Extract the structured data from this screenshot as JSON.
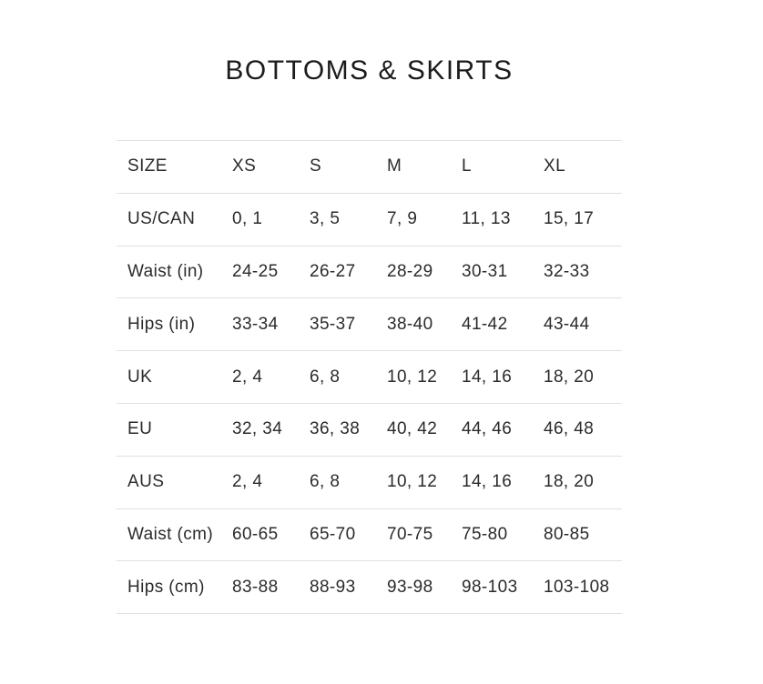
{
  "title": "BOTTOMS & SKIRTS",
  "colors": {
    "background": "#ffffff",
    "title_text": "#1c1c1c",
    "cell_text": "#2b2b2b",
    "divider": "#e0e0e0"
  },
  "table": {
    "columns": [
      "SIZE",
      "XS",
      "S",
      "M",
      "L",
      "XL"
    ],
    "rows": [
      {
        "label": "US/CAN",
        "values": [
          "0, 1",
          "3, 5",
          "7, 9",
          "11, 13",
          "15, 17"
        ]
      },
      {
        "label": "Waist (in)",
        "values": [
          "24-25",
          "26-27",
          "28-29",
          "30-31",
          "32-33"
        ]
      },
      {
        "label": "Hips (in)",
        "values": [
          "33-34",
          "35-37",
          "38-40",
          "41-42",
          "43-44"
        ]
      },
      {
        "label": "UK",
        "values": [
          "2, 4",
          "6, 8",
          "10, 12",
          "14, 16",
          "18, 20"
        ]
      },
      {
        "label": "EU",
        "values": [
          "32, 34",
          "36, 38",
          "40, 42",
          "44, 46",
          "46, 48"
        ]
      },
      {
        "label": "AUS",
        "values": [
          "2, 4",
          "6, 8",
          "10, 12",
          "14, 16",
          "18, 20"
        ]
      },
      {
        "label": "Waist (cm)",
        "values": [
          "60-65",
          "65-70",
          "70-75",
          "75-80",
          "80-85"
        ]
      },
      {
        "label": "Hips (cm)",
        "values": [
          "83-88",
          "88-93",
          "93-98",
          "98-103",
          "103-108"
        ]
      }
    ]
  }
}
